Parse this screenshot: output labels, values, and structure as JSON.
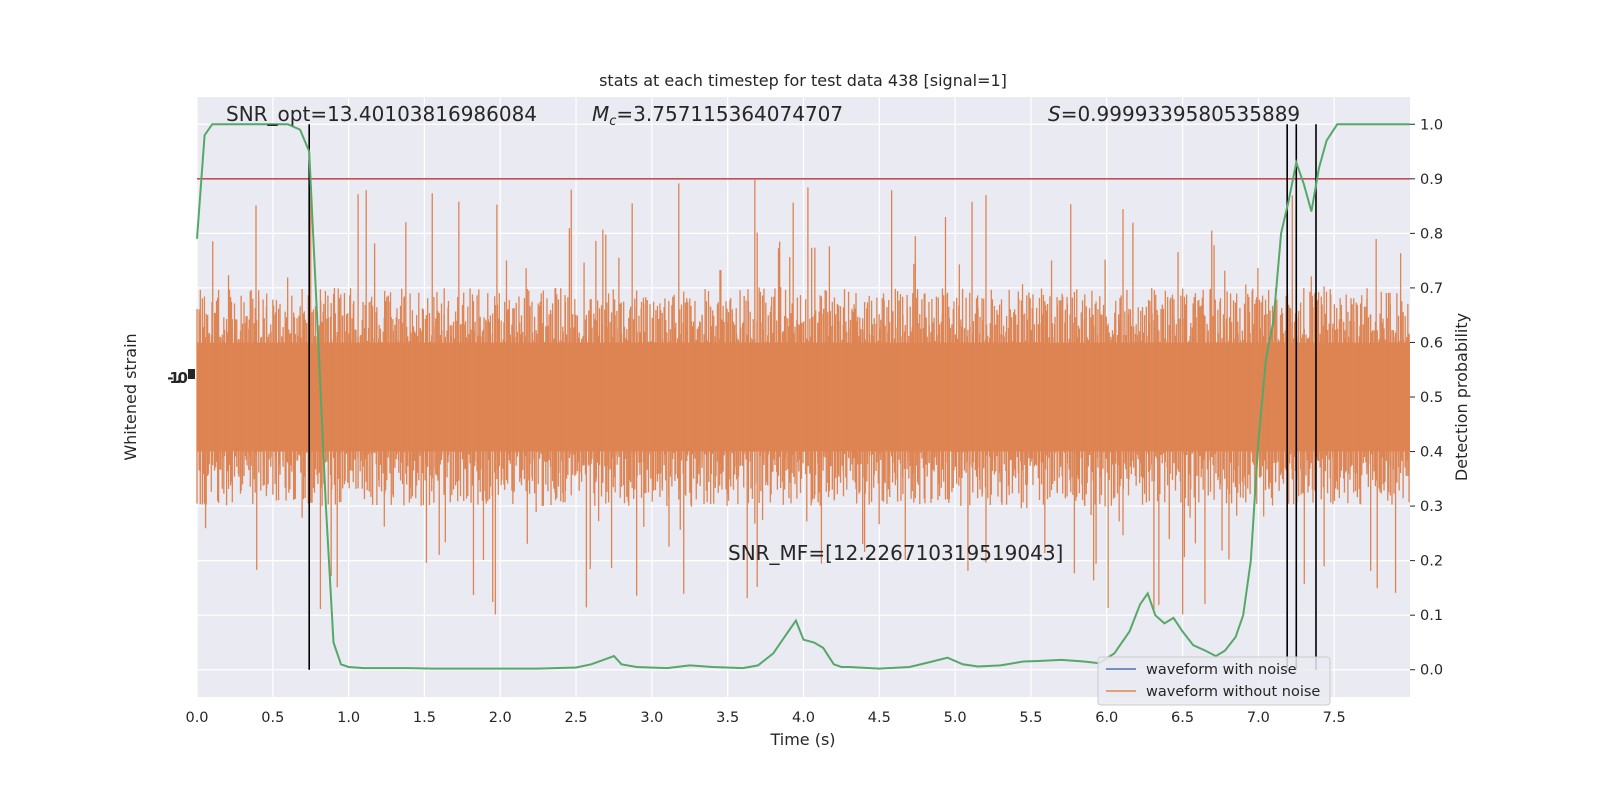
{
  "chart_data": {
    "type": "line",
    "title": "stats at each timestep for test data 438 [signal=1]",
    "xlabel": "Time (s)",
    "ylabel_left": "Whitened strain",
    "ylabel_right": "Detection probability",
    "xlim": [
      0,
      8.0
    ],
    "ylim_right": [
      -0.05,
      1.05
    ],
    "x_ticks": [
      "0.0",
      "0.5",
      "1.0",
      "1.5",
      "2.0",
      "2.5",
      "3.0",
      "3.5",
      "4.0",
      "4.5",
      "5.0",
      "5.5",
      "6.0",
      "6.5",
      "7.0",
      "7.5"
    ],
    "y_ticks_right": [
      "0.0",
      "0.1",
      "0.2",
      "0.3",
      "0.4",
      "0.5",
      "0.6",
      "0.7",
      "0.8",
      "0.9",
      "1.0"
    ],
    "y_ticks_left_label": "-1.0",
    "grid": true,
    "legend_position": "lower-right",
    "annotations": {
      "snr_opt": "SNR_opt=13.40103816986084",
      "mc_symbol": "M",
      "mc_subscript": "c",
      "mc_value": "=3.757115364074707",
      "s_symbol": "S",
      "s_value": "=0.9999339580535889",
      "snr_mf": "SNR_MF=[12.226710319519043]"
    },
    "threshold": 0.9,
    "vertical_lines_x": [
      0.74,
      7.19,
      7.25,
      7.38
    ],
    "series": [
      {
        "name": "waveform with noise",
        "color": "#4c72b0"
      },
      {
        "name": "waveform without noise",
        "color": "#dd8452",
        "band_center": 0.5,
        "band_dense_half_width": 0.1,
        "band_typical_half_width": 0.2,
        "band_max_half_width": 0.4
      },
      {
        "color": "#55a868",
        "x": [
          0.0,
          0.05,
          0.1,
          0.15,
          0.2,
          0.3,
          0.4,
          0.5,
          0.6,
          0.68,
          0.74,
          0.8,
          0.85,
          0.9,
          0.95,
          1.0,
          1.1,
          1.25,
          1.4,
          1.55,
          1.75,
          2.0,
          2.25,
          2.5,
          2.6,
          2.7,
          2.75,
          2.8,
          2.9,
          3.1,
          3.25,
          3.4,
          3.6,
          3.7,
          3.8,
          3.9,
          3.95,
          4.0,
          4.07,
          4.13,
          4.2,
          4.25,
          4.3,
          4.5,
          4.7,
          4.85,
          4.95,
          5.05,
          5.15,
          5.3,
          5.45,
          5.55,
          5.7,
          5.85,
          5.95,
          6.05,
          6.15,
          6.22,
          6.27,
          6.32,
          6.38,
          6.44,
          6.5,
          6.57,
          6.65,
          6.72,
          6.78,
          6.85,
          6.9,
          6.95,
          7.0,
          7.05,
          7.1,
          7.15,
          7.2,
          7.25,
          7.3,
          7.35,
          7.4,
          7.45,
          7.52,
          7.6,
          7.7,
          7.8,
          7.9,
          8.0
        ],
        "values": [
          0.79,
          0.98,
          1.0,
          1.0,
          1.0,
          1.0,
          1.0,
          1.0,
          1.0,
          0.99,
          0.95,
          0.6,
          0.3,
          0.05,
          0.01,
          0.005,
          0.003,
          0.003,
          0.003,
          0.002,
          0.002,
          0.002,
          0.002,
          0.004,
          0.01,
          0.02,
          0.025,
          0.01,
          0.005,
          0.003,
          0.008,
          0.005,
          0.003,
          0.008,
          0.03,
          0.07,
          0.09,
          0.055,
          0.05,
          0.04,
          0.01,
          0.005,
          0.005,
          0.002,
          0.005,
          0.015,
          0.022,
          0.01,
          0.006,
          0.008,
          0.015,
          0.016,
          0.018,
          0.015,
          0.012,
          0.03,
          0.07,
          0.12,
          0.14,
          0.1,
          0.085,
          0.095,
          0.07,
          0.045,
          0.035,
          0.025,
          0.035,
          0.06,
          0.1,
          0.2,
          0.42,
          0.57,
          0.64,
          0.8,
          0.86,
          0.93,
          0.89,
          0.84,
          0.92,
          0.97,
          1.0,
          1.0,
          1.0,
          1.0,
          1.0,
          1.0
        ]
      }
    ]
  }
}
